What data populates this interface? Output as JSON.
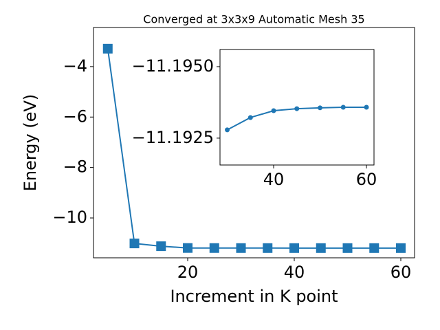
{
  "chart_data": [
    {
      "type": "line",
      "title": "Converged at 3x3x9 Automatic Mesh 35",
      "xlabel": "Increment in K point",
      "ylabel": "Energy (eV)",
      "x": [
        5,
        10,
        15,
        20,
        25,
        30,
        35,
        40,
        45,
        50,
        55,
        60
      ],
      "series": [
        {
          "name": "Energy",
          "color": "#1f77b4",
          "marker": "square",
          "values": [
            -3.29,
            -11.01,
            -11.12,
            -11.19,
            -11.192,
            -11.1928,
            -11.1932,
            -11.1935,
            -11.1935,
            -11.1936,
            -11.1936,
            -11.1936
          ]
        }
      ],
      "xlim": [
        2.32,
        62.58
      ],
      "ylim": [
        -11.58,
        -2.45
      ],
      "xticks": [
        20,
        40,
        60
      ],
      "yticks": [
        {
          "value": -4,
          "label": "−4"
        },
        {
          "value": -6,
          "label": "−6"
        },
        {
          "value": -8,
          "label": "−8"
        },
        {
          "value": -10,
          "label": "−10"
        }
      ]
    },
    {
      "type": "line",
      "x": [
        30,
        35,
        40,
        45,
        50,
        55,
        60
      ],
      "series": [
        {
          "name": "Energy",
          "color": "#1f77b4",
          "marker": "circle",
          "values": [
            -11.19279,
            -11.19322,
            -11.19346,
            -11.19353,
            -11.19356,
            -11.19358,
            -11.19358
          ]
        }
      ],
      "xlim": [
        28.44,
        61.63
      ],
      "ylim": [
        -11.19156,
        -11.1956
      ],
      "xticks": [
        40,
        60
      ],
      "yticks": [
        {
          "value": -11.195,
          "label": "−11.1950"
        },
        {
          "value": -11.1925,
          "label": "−11.1925"
        }
      ]
    }
  ]
}
